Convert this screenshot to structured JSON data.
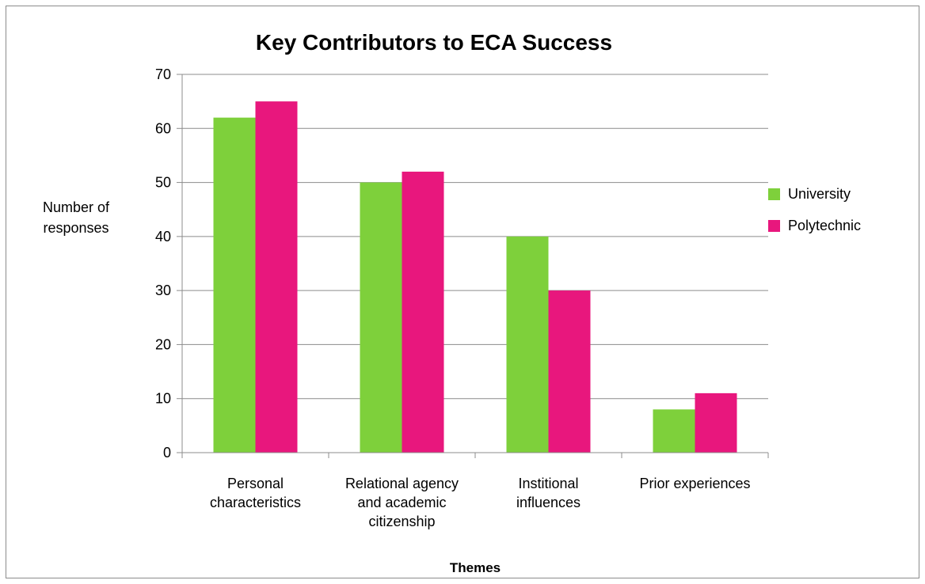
{
  "chart_data": {
    "type": "bar",
    "title": "Key Contributors to ECA Success",
    "ylabel_lines": [
      "Number of",
      "responses"
    ],
    "xlabel": "Themes",
    "ylim": [
      0,
      70
    ],
    "yticks": [
      0,
      10,
      20,
      30,
      40,
      50,
      60,
      70
    ],
    "grid": true,
    "legend_position": "right",
    "categories": [
      [
        "Personal",
        "characteristics"
      ],
      [
        "Relational agency",
        "and academic",
        "citizenship"
      ],
      [
        "Institional",
        "influences"
      ],
      [
        "Prior experiences"
      ]
    ],
    "series": [
      {
        "name": "University",
        "color": "#7ed03b",
        "values": [
          62,
          50,
          40,
          8
        ]
      },
      {
        "name": "Polytechnic",
        "color": "#e8177d",
        "values": [
          65,
          52,
          30,
          11
        ]
      }
    ]
  }
}
